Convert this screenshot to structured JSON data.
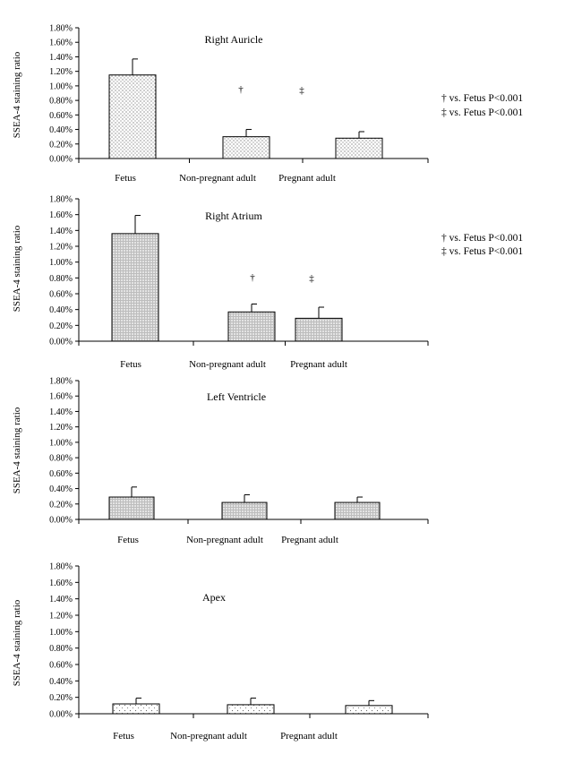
{
  "chart_data": [
    {
      "type": "bar",
      "title": "Right Auricle",
      "ylabel": "SSEA-4 staining ratio",
      "categories": [
        "Fetus",
        "Non-pregnant adult",
        "Pregnant adult"
      ],
      "values": [
        1.15,
        0.3,
        0.28
      ],
      "errors": [
        0.22,
        0.1,
        0.09
      ],
      "ylim": [
        0,
        1.8
      ],
      "yticks": [
        "0.00%",
        "0.20%",
        "0.40%",
        "0.60%",
        "0.80%",
        "1.00%",
        "1.20%",
        "1.40%",
        "1.60%",
        "1.80%"
      ],
      "pattern": "dots",
      "annotations": [
        {
          "text": "†",
          "value": 0.96
        },
        {
          "text": "‡",
          "value": 0.96
        }
      ],
      "legend": [
        "† vs. Fetus P<0.001",
        "‡ vs. Fetus P<0.001"
      ]
    },
    {
      "type": "bar",
      "title": "Right Atrium",
      "ylabel": "SSEA-4 staining ratio",
      "categories": [
        "Fetus",
        "Non-pregnant adult",
        "Pregnant adult"
      ],
      "values": [
        1.36,
        0.37,
        0.29
      ],
      "errors": [
        0.23,
        0.1,
        0.14
      ],
      "ylim": [
        0,
        1.8
      ],
      "yticks": [
        "0.00%",
        "0.20%",
        "0.40%",
        "0.60%",
        "0.80%",
        "1.00%",
        "1.20%",
        "1.40%",
        "1.60%",
        "1.80%"
      ],
      "pattern": "grid",
      "annotations": [
        {
          "text": "†",
          "value": 0.82
        },
        {
          "text": "‡",
          "value": 0.8
        }
      ],
      "legend": [
        "† vs. Fetus P<0.001",
        "‡ vs. Fetus P<0.001"
      ]
    },
    {
      "type": "bar",
      "title": "Left Ventricle",
      "ylabel": "SSEA-4 staining ratio",
      "categories": [
        "Fetus",
        "Non-pregnant adult",
        "Pregnant adult"
      ],
      "values": [
        0.29,
        0.22,
        0.22
      ],
      "errors": [
        0.13,
        0.1,
        0.07
      ],
      "ylim": [
        0,
        1.8
      ],
      "yticks": [
        "0.00%",
        "0.20%",
        "0.40%",
        "0.60%",
        "0.80%",
        "1.00%",
        "1.20%",
        "1.40%",
        "1.60%",
        "1.80%"
      ],
      "pattern": "grid",
      "annotations": [],
      "legend": []
    },
    {
      "type": "bar",
      "title": "Apex",
      "ylabel": "SSEA-4 staining ratio",
      "categories": [
        "Fetus",
        "Non-pregnant adult",
        "Pregnant adult"
      ],
      "values": [
        0.12,
        0.11,
        0.1
      ],
      "errors": [
        0.07,
        0.08,
        0.06
      ],
      "ylim": [
        0,
        1.8
      ],
      "yticks": [
        "0.00%",
        "0.20%",
        "0.40%",
        "0.60%",
        "0.80%",
        "1.00%",
        "1.20%",
        "1.40%",
        "1.60%",
        "1.80%"
      ],
      "pattern": "sparse",
      "annotations": [],
      "legend": []
    }
  ]
}
